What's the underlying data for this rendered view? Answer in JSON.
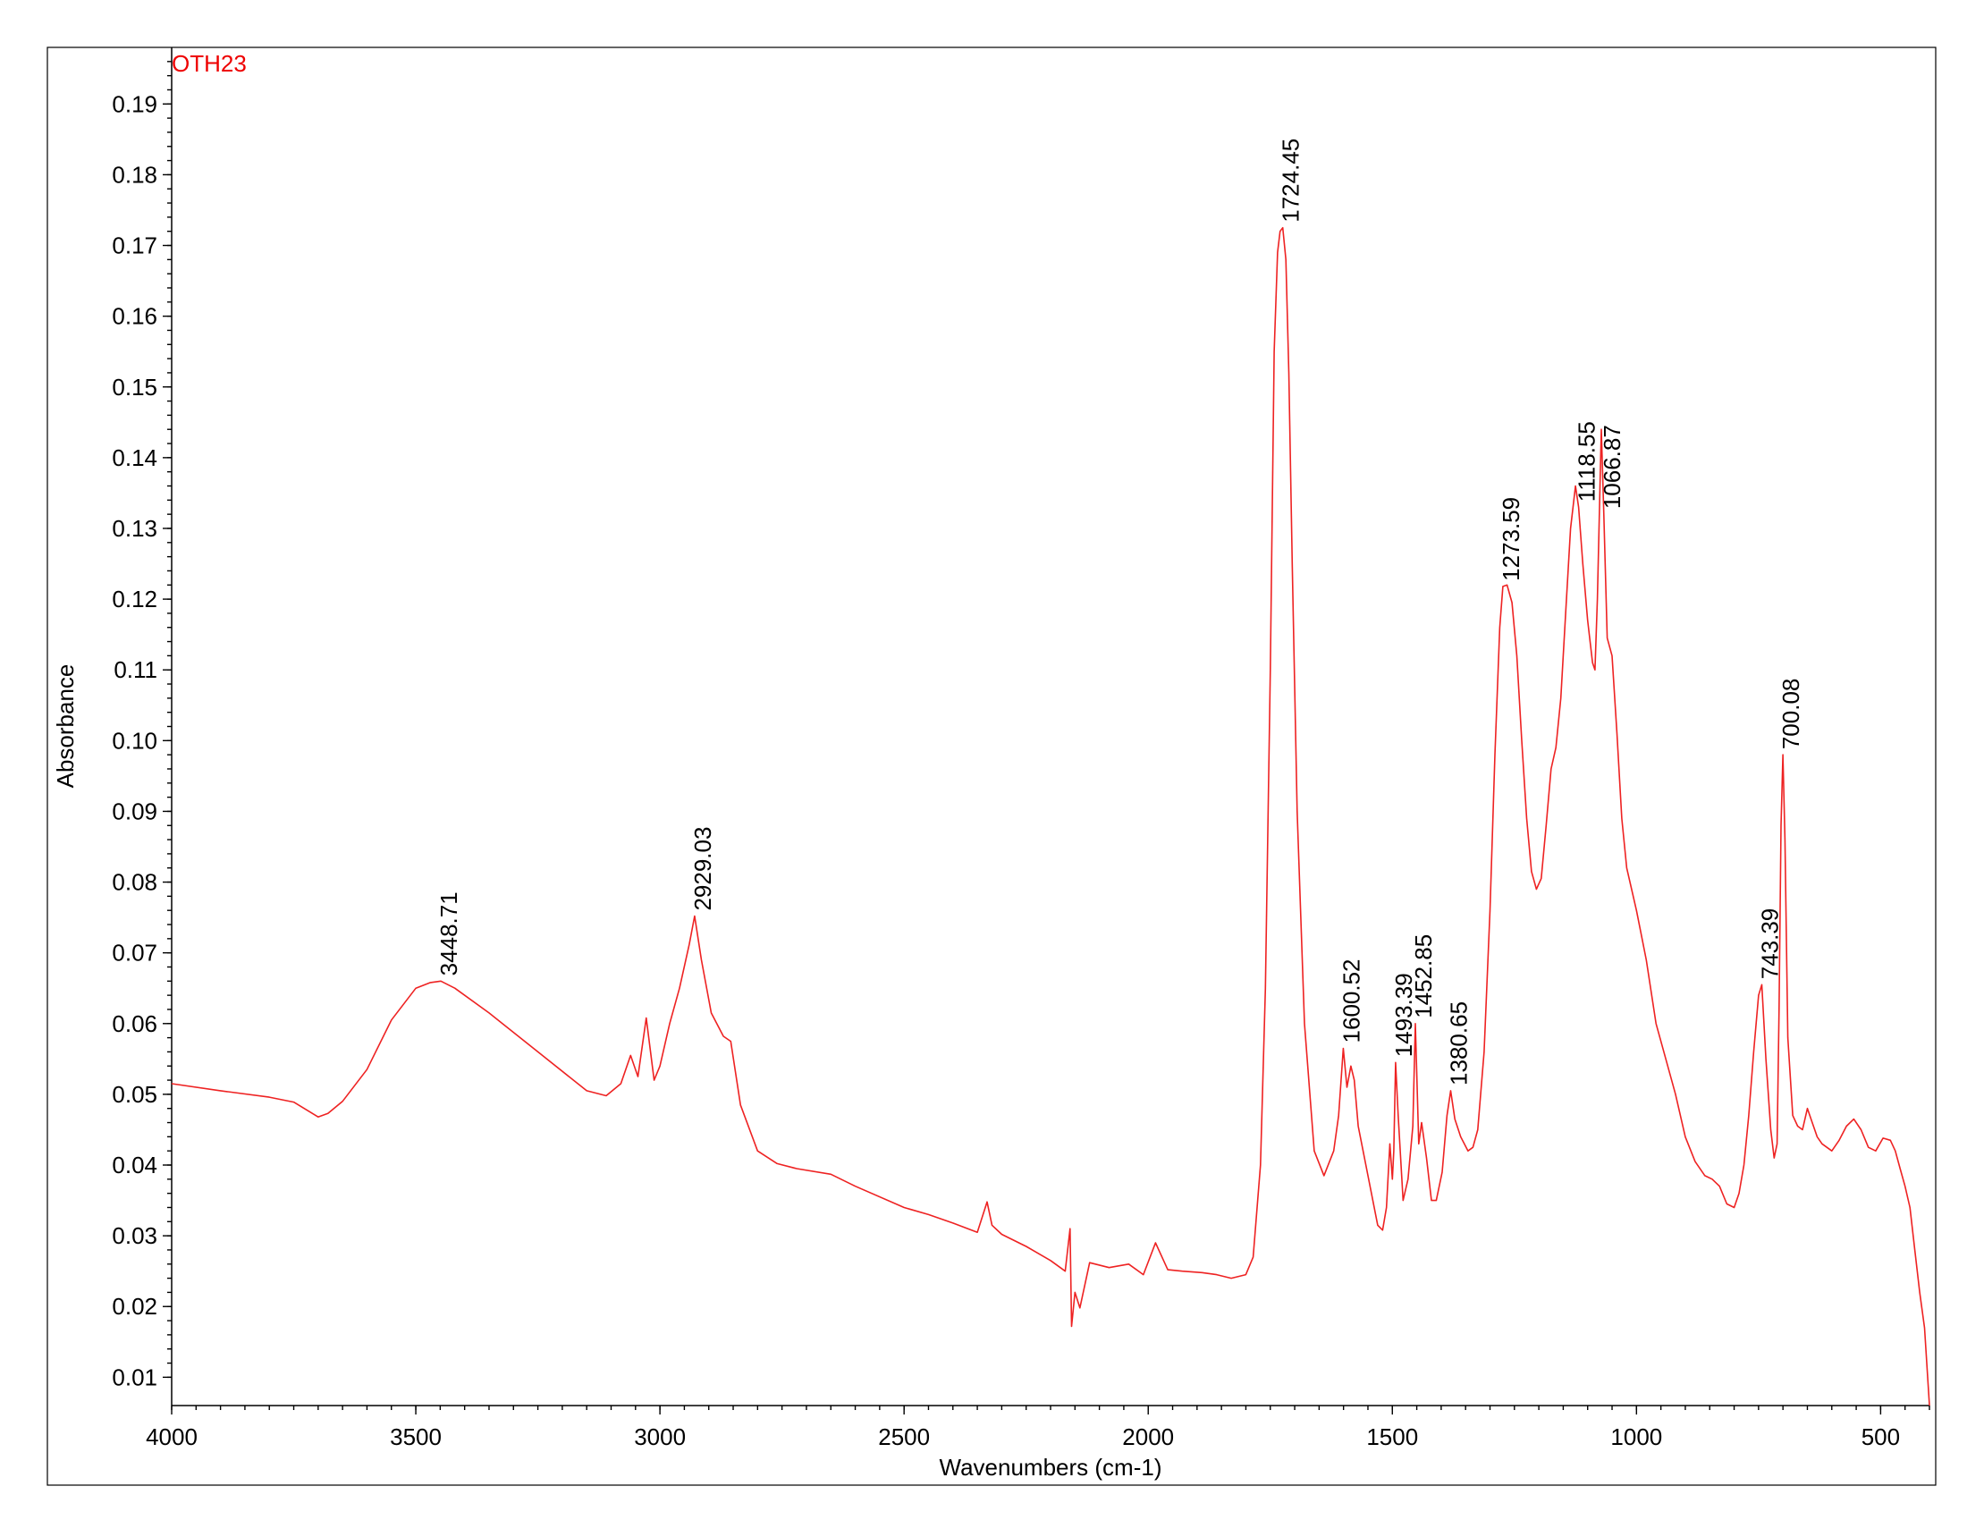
{
  "chart_data": {
    "type": "line",
    "sample_label": "OTH23",
    "xlabel": "Wavenumbers (cm-1)",
    "ylabel": "Absorbance",
    "xlim": [
      4000,
      400
    ],
    "ylim": [
      0.006,
      0.198
    ],
    "x_ticks": [
      4000,
      3500,
      3000,
      2500,
      2000,
      1500,
      1000,
      500
    ],
    "x_tick_labels": [
      "4000",
      "3500",
      "3000",
      "2500",
      "2000",
      "1500",
      "1000",
      "500"
    ],
    "y_ticks": [
      0.01,
      0.02,
      0.03,
      0.04,
      0.05,
      0.06,
      0.07,
      0.08,
      0.09,
      0.1,
      0.11,
      0.12,
      0.13,
      0.14,
      0.15,
      0.16,
      0.17,
      0.18,
      0.19
    ],
    "y_tick_labels": [
      "0.01",
      "0.02",
      "0.03",
      "0.04",
      "0.05",
      "0.06",
      "0.07",
      "0.08",
      "0.09",
      "0.10",
      "0.11",
      "0.12",
      "0.13",
      "0.14",
      "0.15",
      "0.16",
      "0.17",
      "0.18",
      "0.19"
    ],
    "grid": false,
    "line_color": "#ee2222",
    "label_color": "#ee0000",
    "series": [
      {
        "x": [
          4000,
          3900,
          3800,
          3750,
          3700,
          3680,
          3650,
          3600,
          3550,
          3500,
          3470,
          3448.71,
          3420,
          3350,
          3250,
          3150,
          3110,
          3080,
          3060,
          3045,
          3028,
          3012,
          3000,
          2980,
          2960,
          2940,
          2929.03,
          2915,
          2895,
          2870,
          2855,
          2835,
          2800,
          2760,
          2720,
          2650,
          2600,
          2500,
          2450,
          2400,
          2350,
          2330,
          2320,
          2300,
          2250,
          2200,
          2170,
          2160,
          2157,
          2150,
          2140,
          2120,
          2080,
          2040,
          2010,
          1985,
          1960,
          1930,
          1890,
          1860,
          1830,
          1800,
          1785,
          1770,
          1760,
          1750,
          1742,
          1735,
          1730,
          1724.45,
          1718,
          1712,
          1705,
          1695,
          1680,
          1660,
          1640,
          1620,
          1610,
          1600.52,
          1593,
          1585,
          1578,
          1570,
          1550,
          1530,
          1520,
          1512,
          1505,
          1500,
          1497,
          1493.39,
          1488,
          1478,
          1468,
          1458,
          1452.85,
          1446,
          1440,
          1430,
          1420,
          1410,
          1398,
          1388,
          1380.65,
          1372,
          1360,
          1345,
          1335,
          1325,
          1312,
          1300,
          1290,
          1280,
          1273.59,
          1265,
          1255,
          1245,
          1235,
          1225,
          1215,
          1205,
          1195,
          1185,
          1175,
          1165,
          1155,
          1145,
          1135,
          1125,
          1118.55,
          1110,
          1100,
          1090,
          1085,
          1080,
          1072,
          1066.87,
          1060,
          1050,
          1040,
          1030,
          1020,
          1000,
          980,
          960,
          940,
          920,
          900,
          880,
          860,
          845,
          830,
          815,
          800,
          790,
          780,
          770,
          760,
          750,
          743.39,
          735,
          725,
          718,
          712,
          708,
          704,
          700.08,
          696,
          690,
          680,
          670,
          660,
          650,
          640,
          630,
          620,
          600,
          585,
          570,
          555,
          540,
          525,
          510,
          495,
          480,
          470,
          460,
          450,
          440,
          430,
          420,
          410,
          400
        ],
        "y": [
          0.0515,
          0.0505,
          0.0496,
          0.0489,
          0.0468,
          0.0473,
          0.049,
          0.0535,
          0.0605,
          0.065,
          0.0658,
          0.066,
          0.065,
          0.0615,
          0.056,
          0.0505,
          0.0498,
          0.0515,
          0.0555,
          0.0525,
          0.0608,
          0.052,
          0.054,
          0.06,
          0.065,
          0.0712,
          0.0752,
          0.069,
          0.0615,
          0.0582,
          0.0575,
          0.0485,
          0.042,
          0.0402,
          0.0395,
          0.0387,
          0.037,
          0.034,
          0.033,
          0.0318,
          0.0305,
          0.0348,
          0.0315,
          0.0302,
          0.0285,
          0.0265,
          0.025,
          0.031,
          0.0172,
          0.022,
          0.0198,
          0.0262,
          0.0255,
          0.026,
          0.0245,
          0.029,
          0.0252,
          0.025,
          0.0248,
          0.0245,
          0.024,
          0.0245,
          0.027,
          0.04,
          0.065,
          0.11,
          0.155,
          0.169,
          0.172,
          0.1725,
          0.168,
          0.152,
          0.125,
          0.09,
          0.06,
          0.042,
          0.0385,
          0.042,
          0.047,
          0.0565,
          0.051,
          0.054,
          0.052,
          0.0455,
          0.0385,
          0.0315,
          0.0308,
          0.034,
          0.043,
          0.038,
          0.042,
          0.0545,
          0.047,
          0.035,
          0.038,
          0.0455,
          0.06,
          0.043,
          0.046,
          0.041,
          0.035,
          0.035,
          0.039,
          0.047,
          0.0505,
          0.0465,
          0.044,
          0.042,
          0.0425,
          0.045,
          0.056,
          0.076,
          0.098,
          0.116,
          0.1218,
          0.122,
          0.1195,
          0.112,
          0.1,
          0.089,
          0.0815,
          0.079,
          0.0805,
          0.088,
          0.096,
          0.099,
          0.106,
          0.118,
          0.13,
          0.136,
          0.133,
          0.125,
          0.117,
          0.111,
          0.11,
          0.12,
          0.144,
          0.132,
          0.1145,
          0.112,
          0.101,
          0.089,
          0.082,
          0.076,
          0.069,
          0.06,
          0.055,
          0.05,
          0.044,
          0.0405,
          0.0385,
          0.038,
          0.037,
          0.0345,
          0.034,
          0.036,
          0.04,
          0.047,
          0.056,
          0.064,
          0.0655,
          0.055,
          0.045,
          0.041,
          0.043,
          0.062,
          0.088,
          0.098,
          0.086,
          0.058,
          0.047,
          0.0455,
          0.045,
          0.048,
          0.046,
          0.044,
          0.043,
          0.042,
          0.0435,
          0.0455,
          0.0465,
          0.045,
          0.0425,
          0.042,
          0.0438,
          0.0435,
          0.042,
          0.0395,
          0.037,
          0.034,
          0.028,
          0.022,
          0.017,
          0.006
        ]
      }
    ],
    "peaks": [
      {
        "x": 3448.71,
        "label": "3448.71"
      },
      {
        "x": 2929.03,
        "label": "2929.03"
      },
      {
        "x": 1724.45,
        "label": "1724.45"
      },
      {
        "x": 1600.52,
        "label": "1600.52"
      },
      {
        "x": 1493.39,
        "label": "1493.39"
      },
      {
        "x": 1452.85,
        "label": "1452.85"
      },
      {
        "x": 1380.65,
        "label": "1380.65"
      },
      {
        "x": 1273.59,
        "label": "1273.59"
      },
      {
        "x": 1118.55,
        "label": "1118.55"
      },
      {
        "x": 1066.87,
        "label": "1066.87"
      },
      {
        "x": 743.39,
        "label": "743.39"
      },
      {
        "x": 700.08,
        "label": "700.08"
      }
    ]
  }
}
